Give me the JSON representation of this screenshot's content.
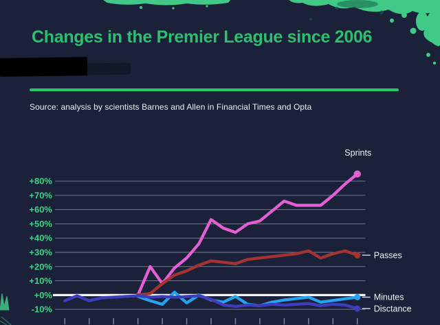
{
  "theme": {
    "background": "#1a2139",
    "title_color": "#2cc06e",
    "divider_color": "#27c96b",
    "text_color": "#eef1f6",
    "axis_label_color": "#3ed385",
    "gridline_color": "#97a1b6",
    "zero_line_color": "#ffffff",
    "tick_color": "#97a1b6",
    "leader_line_color": "#d6dce8",
    "legend_text_color": "#f2f4f8",
    "splatter_green": "#41ca87",
    "splatter_dark_teal": "#17604a",
    "plant_green": "#3fae7e",
    "redaction_color": "#000000"
  },
  "chart_data": {
    "type": "line",
    "title": "Changes in the Premier League since 2006",
    "source": "Source: analysis by scientists Barnes and Allen in Financial Times and Opta",
    "ylim": [
      -13,
      92
    ],
    "grid": true,
    "legend_position": "line-end-labels",
    "y_ticks": [
      {
        "label": "+80%",
        "value": 80
      },
      {
        "label": "+70%",
        "value": 70
      },
      {
        "label": "+60%",
        "value": 60
      },
      {
        "label": "+50%",
        "value": 50
      },
      {
        "label": "+40%",
        "value": 40
      },
      {
        "label": "+30%",
        "value": 30
      },
      {
        "label": "+20%",
        "value": 20
      },
      {
        "label": "+10%",
        "value": 10
      },
      {
        "label": "+0%",
        "value": 0
      },
      {
        "label": "-10%",
        "value": -10
      }
    ],
    "x_axis": {
      "tick_count": 13,
      "points_per_tick_interval": 2,
      "tick_labels_visible": false
    },
    "series": [
      {
        "name": "sprints",
        "label": "Sprints",
        "color": "#e55fd4",
        "start_index": 6,
        "label_placement": "above",
        "values": [
          0,
          20,
          8,
          19,
          26,
          36,
          53,
          47,
          44,
          50,
          52,
          59,
          66,
          63,
          63,
          63,
          70,
          78,
          85
        ]
      },
      {
        "name": "passes",
        "label": "Passes",
        "color": "#a43431",
        "start_index": 6,
        "label_placement": "right",
        "values": [
          0,
          1,
          8,
          14,
          17,
          21,
          24,
          23,
          22,
          25,
          26,
          27,
          28,
          29,
          31,
          26,
          29,
          31,
          28
        ]
      },
      {
        "name": "minutes",
        "label": "Minutes",
        "color": "#27a2ef",
        "start_index": 6,
        "label_placement": "right",
        "values": [
          -1,
          -4,
          -6.5,
          2,
          -5.5,
          0,
          -3.5,
          -5,
          -1,
          -6.5,
          -7.5,
          -5,
          -3.5,
          -2.5,
          -1.5,
          -5,
          -3.8,
          -2.6,
          -1.5
        ]
      },
      {
        "name": "distance",
        "label": "Disctance",
        "color": "#3d3dbd",
        "start_index": 0,
        "label_placement": "right",
        "values": [
          -4,
          -0.5,
          -4,
          -2,
          -1.5,
          -1,
          -0.5,
          -1.5,
          -1,
          -1.5,
          -1,
          -0.5,
          -3,
          -7,
          -8,
          -7,
          -7.5,
          -6.5,
          -7,
          -6.5,
          -6,
          -7.5,
          -6.5,
          -7,
          -9.5
        ]
      }
    ]
  }
}
